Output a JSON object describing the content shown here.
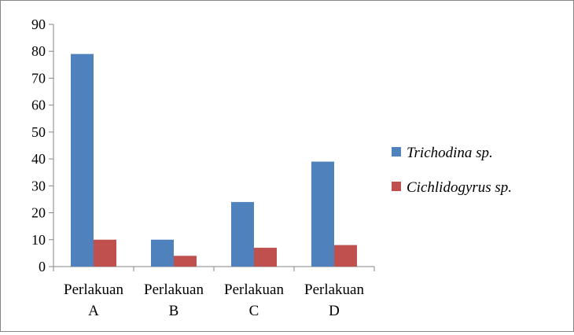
{
  "chart_data": {
    "type": "bar",
    "title": "",
    "xlabel": "",
    "ylabel": "",
    "ylim": [
      0,
      90
    ],
    "yticks": [
      0,
      10,
      20,
      30,
      40,
      50,
      60,
      70,
      80,
      90
    ],
    "categories": [
      {
        "line1": "Perlakuan",
        "line2": "A"
      },
      {
        "line1": "Perlakuan",
        "line2": "B"
      },
      {
        "line1": "Perlakuan",
        "line2": "C"
      },
      {
        "line1": "Perlakuan",
        "line2": "D"
      }
    ],
    "series": [
      {
        "name": "Trichodina sp.",
        "color": "#4f81bd",
        "values": [
          79,
          10,
          24,
          39
        ]
      },
      {
        "name": "Cichlidogyrus sp.",
        "color": "#c0504d",
        "values": [
          10,
          4,
          7,
          8
        ]
      }
    ],
    "grid": false,
    "legend_position": "right"
  }
}
